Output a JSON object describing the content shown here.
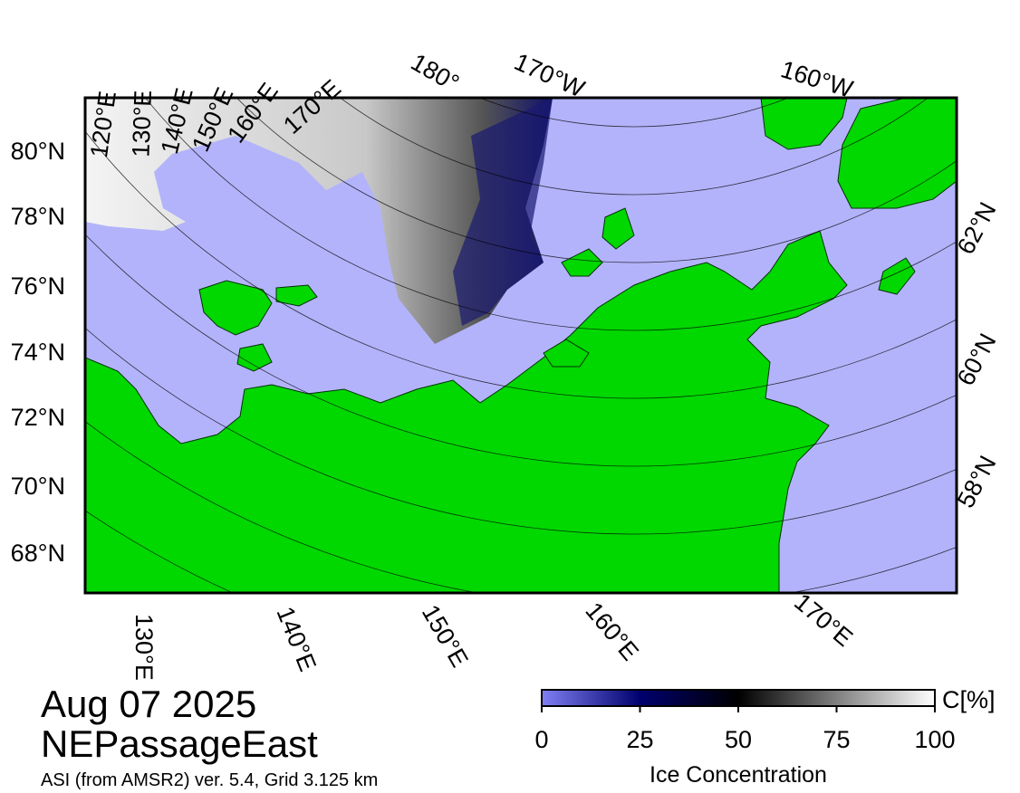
{
  "date": "Aug 07 2025",
  "region": "NEPassageEast",
  "source": "ASI (from AMSR2) ver. 5.4,  Grid 3.125 km",
  "map": {
    "top_labels": [
      "120°E",
      "130°E",
      "140°E",
      "150°E",
      "160°E",
      "170°E",
      "180°",
      "170°W",
      "160°W"
    ],
    "left_labels": [
      "80°N",
      "78°N",
      "76°N",
      "74°N",
      "72°N",
      "70°N",
      "68°N"
    ],
    "right_labels": [
      "62°N",
      "60°N",
      "58°N"
    ],
    "bottom_labels": [
      "130°E",
      "140°E",
      "150°E",
      "160°E",
      "170°E"
    ]
  },
  "colorbar": {
    "label": "Ice Concentration",
    "unit": "C[%]",
    "min": 0,
    "max": 100,
    "ticks": [
      0,
      25,
      50,
      75,
      100
    ]
  }
}
